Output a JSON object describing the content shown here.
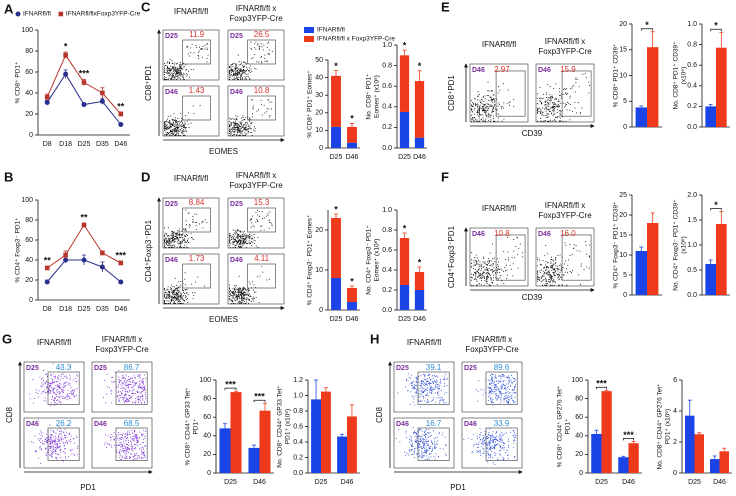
{
  "chart_data": [
    {
      "type": "line",
      "panel": "A",
      "categories": [
        "D8",
        "D18",
        "D25",
        "D35",
        "D46"
      ],
      "ylabel": "% CD8⁺ PD1⁺",
      "ylim": [
        0,
        100
      ],
      "yticks": [
        0,
        20,
        40,
        60,
        80,
        100
      ],
      "legend": "top",
      "series": [
        {
          "name": "IFNARfl/fl",
          "color": "#2b2f8f",
          "marker": "circle",
          "values": [
            31,
            58,
            29,
            32,
            10
          ],
          "errors": [
            2,
            4,
            1,
            3,
            1
          ]
        },
        {
          "name": "IFNARfl/flxFoxp3YFP-Cre",
          "color": "#b8352c",
          "marker": "square",
          "values": [
            36,
            76,
            50,
            40,
            20
          ],
          "errors": [
            3,
            3,
            3,
            5,
            2
          ]
        }
      ],
      "significance": [
        null,
        "*",
        "***",
        null,
        "**"
      ]
    },
    {
      "type": "line",
      "panel": "B",
      "categories": [
        "D8",
        "D18",
        "D25",
        "D35",
        "D46"
      ],
      "ylabel": "% CD4⁺ Foxp3⁻ PD1⁺",
      "ylim": [
        0,
        100
      ],
      "yticks": [
        0,
        20,
        40,
        60,
        80,
        100
      ],
      "series": [
        {
          "color": "#2b2f8f",
          "marker": "circle",
          "values": [
            18,
            40,
            40,
            33,
            18
          ],
          "errors": [
            2,
            3,
            5,
            5,
            1
          ]
        },
        {
          "color": "#b8352c",
          "marker": "square",
          "values": [
            32,
            45,
            75,
            47,
            37
          ],
          "errors": [
            2,
            4,
            2,
            2,
            2
          ]
        }
      ],
      "significance": [
        "**",
        null,
        "**",
        null,
        "***"
      ]
    },
    {
      "type": "flow",
      "panel": "C",
      "color": "#111111",
      "gate_color": "#555555",
      "percent_color": "#d6342a",
      "day_color": "#7a2d9c",
      "ylabel": "CD8⁺PD1",
      "xlabel": "EOMES",
      "columns": [
        {
          "title": [
            "IFNARfl/fl"
          ],
          "plots": [
            {
              "day": "D25",
              "percent": 11.9
            },
            {
              "day": "D46",
              "percent": 1.43
            }
          ]
        },
        {
          "title": [
            "IFNARfl/fl x",
            "Foxp3YFP-Cre"
          ],
          "plots": [
            {
              "day": "D25",
              "percent": 26.5
            },
            {
              "day": "D46",
              "percent": 10.8
            }
          ]
        }
      ]
    },
    {
      "type": "stacked_bar",
      "categories": [
        "D25",
        "D46"
      ],
      "ylabel": "% CD8⁺ PD1⁺ Eomes⁺",
      "ylim": [
        0,
        50
      ],
      "yticks": [
        0,
        10,
        20,
        30,
        40,
        50
      ],
      "legend": "top",
      "series": [
        {
          "name": "IFNARfl/fl",
          "color": "#1a44e6",
          "values": [
            12,
            3
          ],
          "errors": [
            2,
            1
          ]
        },
        {
          "name": "IFNARfl/fl x Foxp3YFP-Cre",
          "color": "#ee3a1a",
          "values": [
            29,
            9
          ],
          "errors": [
            3,
            2
          ]
        }
      ],
      "significance": [
        "*",
        "*"
      ]
    },
    {
      "type": "stacked_bar",
      "categories": [
        "D25",
        "D46"
      ],
      "ylabel": [
        "No. CD8⁺ PD1⁺",
        "Eomes⁺ (x10⁶)"
      ],
      "ylim": [
        0,
        1
      ],
      "yticks": [
        {
          "value": 0,
          "label": "0.0"
        },
        {
          "value": 0.2,
          "label": "0.2"
        },
        {
          "value": 0.4,
          "label": "0.4"
        },
        {
          "value": 0.6,
          "label": "0.6"
        },
        {
          "value": 0.8,
          "label": "0.8"
        },
        {
          "value": 1,
          "label": "1.0"
        }
      ],
      "series": [
        {
          "color": "#1a44e6",
          "values": [
            0.35,
            0.1
          ],
          "errors": [
            0.05,
            0.02
          ]
        },
        {
          "color": "#ee3a1a",
          "values": [
            0.55,
            0.55
          ],
          "errors": [
            0.05,
            0.1
          ]
        }
      ],
      "significance": [
        "*",
        "*"
      ]
    },
    {
      "type": "flow",
      "panel": "D",
      "color": "#111111",
      "gate_color": "#555555",
      "percent_color": "#d6342a",
      "day_color": "#7a2d9c",
      "ylabel": "CD4⁺Foxp3⁻PD1",
      "xlabel": "EOMES",
      "columns": [
        {
          "title": [
            "IFNARfl/fl"
          ],
          "plots": [
            {
              "day": "D25",
              "percent": 8.84
            },
            {
              "day": "D46",
              "percent": 1.73
            }
          ]
        },
        {
          "title": [
            "IFNARfl/fl x",
            "Foxp3YFP-Cre"
          ],
          "plots": [
            {
              "day": "D25",
              "percent": 15.3
            },
            {
              "day": "D46",
              "percent": 4.11
            }
          ]
        }
      ]
    },
    {
      "type": "stacked_bar",
      "categories": [
        "D25",
        "D46"
      ],
      "ylabel": "% CD4⁺ Foxp3⁻ PD1⁺ Eomes⁺",
      "ylim": [
        0,
        25
      ],
      "yticks": [
        0,
        10,
        20
      ],
      "series": [
        {
          "color": "#1a44e6",
          "values": [
            8,
            2
          ],
          "errors": [
            1,
            0.3
          ]
        },
        {
          "color": "#ee3a1a",
          "values": [
            15,
            3.5
          ],
          "errors": [
            1,
            0.5
          ]
        }
      ],
      "significance": [
        "*",
        "*"
      ]
    },
    {
      "type": "stacked_bar",
      "categories": [
        "D25",
        "D46"
      ],
      "ylabel": [
        "No. CD4⁺ Foxp3⁻ PD1⁺",
        "Eomes⁺ (x10⁶)"
      ],
      "ylim": [
        0,
        1
      ],
      "yticks": [
        {
          "value": 0,
          "label": "0.0"
        },
        {
          "value": 0.2,
          "label": "0.2"
        },
        {
          "value": 0.4,
          "label": "0.4"
        },
        {
          "value": 0.6,
          "label": "0.6"
        },
        {
          "value": 0.8,
          "label": "0.8"
        },
        {
          "value": 1,
          "label": "1.0"
        }
      ],
      "series": [
        {
          "color": "#1a44e6",
          "values": [
            0.25,
            0.2
          ],
          "errors": [
            0.05,
            0.05
          ]
        },
        {
          "color": "#ee3a1a",
          "values": [
            0.47,
            0.18
          ],
          "errors": [
            0.05,
            0.05
          ]
        }
      ],
      "significance": [
        "*",
        "*"
      ]
    },
    {
      "type": "flow",
      "panel": "E",
      "color": "#111111",
      "gate_color": "#555555",
      "percent_color": "#d6342a",
      "day_color": "#7a2d9c",
      "ylabel": "CD8⁺PD1",
      "xlabel": "CD39",
      "columns": [
        {
          "title": [
            "IFNARfl/fl"
          ],
          "plots": [
            {
              "day": "D46",
              "percent": 2.97
            }
          ]
        },
        {
          "title": [
            "IFNARfl/fl x",
            "Foxp3YFP-Cre"
          ],
          "plots": [
            {
              "day": "D46",
              "percent": 15.9
            }
          ]
        }
      ]
    },
    {
      "type": "bar",
      "categories": [
        null
      ],
      "ylabel": "% CD8⁺ PD1⁺ CD39⁺",
      "ylim": [
        0,
        20
      ],
      "yticks": [
        0,
        5,
        10,
        15,
        20
      ],
      "bracket": true,
      "series": [
        {
          "color": "#1a44e6",
          "values": [
            3.8
          ],
          "errors": [
            0.3
          ]
        },
        {
          "color": "#ee3a1a",
          "values": [
            15.5
          ],
          "errors": [
            3
          ]
        }
      ],
      "significance": [
        "*"
      ]
    },
    {
      "type": "bar",
      "categories": [
        null
      ],
      "ylabel": [
        "No. CD8⁺ PD1⁺ CD39⁺",
        "(x10⁶)"
      ],
      "ylim": [
        0,
        1
      ],
      "bracket": true,
      "yticks": [
        {
          "value": 0,
          "label": "0.0"
        },
        {
          "value": 0.2,
          "label": "0.2"
        },
        {
          "value": 0.4,
          "label": "0.4"
        },
        {
          "value": 0.6,
          "label": "0.6"
        },
        {
          "value": 0.8,
          "label": "0.8"
        },
        {
          "value": 1,
          "label": "1.0"
        }
      ],
      "series": [
        {
          "color": "#1a44e6",
          "values": [
            0.2
          ],
          "errors": [
            0.02
          ]
        },
        {
          "color": "#ee3a1a",
          "values": [
            0.77
          ],
          "errors": [
            0.15
          ]
        }
      ],
      "significance": [
        "*"
      ]
    },
    {
      "type": "flow",
      "panel": "F",
      "color": "#111111",
      "gate_color": "#555555",
      "percent_color": "#d6342a",
      "day_color": "#7a2d9c",
      "ylabel": "CD4⁺Foxp3⁻PD1",
      "xlabel": "CD39",
      "columns": [
        {
          "title": [
            "IFNARfl/fl"
          ],
          "plots": [
            {
              "day": "D46",
              "percent": 10.8
            }
          ]
        },
        {
          "title": [
            "IFNARfl/fl x",
            "Foxp3YFP-Cre"
          ],
          "plots": [
            {
              "day": "D46",
              "percent": {
                "value": 16,
                "label": "16.0"
              }
            }
          ]
        }
      ]
    },
    {
      "type": "bar",
      "categories": [
        null
      ],
      "ylabel": "% CD4⁺ Foxp3⁻ PD1⁺ CD39⁺",
      "ylim": [
        0,
        25
      ],
      "yticks": [
        0,
        5,
        10,
        15,
        20,
        25
      ],
      "series": [
        {
          "color": "#1a44e6",
          "values": [
            11
          ],
          "errors": [
            1
          ]
        },
        {
          "color": "#ee3a1a",
          "values": [
            18
          ],
          "errors": [
            2.5
          ]
        }
      ]
    },
    {
      "type": "bar",
      "categories": [
        null
      ],
      "ylabel": [
        "No. CD4⁺ Foxp3⁻ PD1⁺ CD39⁺",
        "(x10⁶)"
      ],
      "ylim": [
        0,
        2
      ],
      "bracket": true,
      "yticks": [
        {
          "value": 0,
          "label": "0.0"
        },
        {
          "value": 0.5,
          "label": "0.5"
        },
        {
          "value": 1,
          "label": "1.0"
        },
        {
          "value": 1.5,
          "label": "1.5"
        },
        {
          "value": 2,
          "label": "2.0"
        }
      ],
      "series": [
        {
          "color": "#1a44e6",
          "values": [
            0.62
          ],
          "errors": [
            0.08
          ]
        },
        {
          "color": "#ee3a1a",
          "values": [
            1.42
          ],
          "errors": [
            0.25
          ]
        }
      ],
      "significance": [
        "*"
      ]
    },
    {
      "type": "flow",
      "panel": "G",
      "color": "#7b2fd6",
      "gate_color": "#555555",
      "percent_color": "#2a8fd6",
      "day_color": "#7a2d9c",
      "ylabel": "CD8",
      "xlabel": "PD1",
      "columns": [
        {
          "title": [
            "IFNARfl/fl"
          ],
          "plots": [
            {
              "day": "D25",
              "percent": 43.3
            },
            {
              "day": "D46",
              "percent": 26.2
            }
          ]
        },
        {
          "title": [
            "IFNARfl/fl x",
            "Foxp3YFP-Cre"
          ],
          "plots": [
            {
              "day": "D25",
              "percent": 86.7
            },
            {
              "day": "D46",
              "percent": 68.5
            }
          ]
        }
      ]
    },
    {
      "type": "bar",
      "categories": [
        "D25",
        "D46"
      ],
      "ylabel": [
        "% CD8⁺ CD44⁺ GP33 Tet⁺",
        "PD1⁺"
      ],
      "ylim": [
        0,
        100
      ],
      "yticks": [
        0,
        20,
        40,
        60,
        80,
        100
      ],
      "bracket": true,
      "series": [
        {
          "color": "#1a44e6",
          "values": [
            48,
            27
          ],
          "errors": [
            5,
            3
          ]
        },
        {
          "color": "#ee3a1a",
          "values": [
            87,
            67
          ],
          "errors": [
            1,
            8
          ]
        }
      ],
      "significance": [
        "***",
        "***"
      ]
    },
    {
      "type": "bar",
      "categories": [
        "D25",
        "D46"
      ],
      "ylabel": [
        "No. CD8⁺ CD44⁺ GP33 Tet⁺",
        "PD1⁺ (x10⁶)"
      ],
      "ylim": [
        0,
        1.2
      ],
      "yticks": [
        {
          "value": 0,
          "label": "0.0"
        },
        {
          "value": 0.2,
          "label": "0.2"
        },
        {
          "value": 0.4,
          "label": "0.4"
        },
        {
          "value": 0.6,
          "label": "0.6"
        },
        {
          "value": 0.8,
          "label": "0.8"
        },
        {
          "value": 1,
          "label": "1.0"
        },
        {
          "value": 1.2,
          "label": "1.2"
        }
      ],
      "series": [
        {
          "color": "#1a44e6",
          "values": [
            0.95,
            0.47
          ],
          "errors": [
            0.25,
            0.03
          ]
        },
        {
          "color": "#ee3a1a",
          "values": [
            1.05,
            0.73
          ],
          "errors": [
            0.05,
            0.15
          ]
        }
      ]
    },
    {
      "type": "flow",
      "panel": "H",
      "color": "#2f4fd6",
      "gate_color": "#555555",
      "percent_color": "#2a8fd6",
      "day_color": "#7a2d9c",
      "ylabel": "CD8",
      "xlabel": "PD1",
      "columns": [
        {
          "title": [
            "IFNARfl/fl"
          ],
          "plots": [
            {
              "day": "D25",
              "percent": 39.1
            },
            {
              "day": "D46",
              "percent": 16.7
            }
          ]
        },
        {
          "title": [
            "IFNARfl/fl x",
            "Foxp3YFP-Cre"
          ],
          "plots": [
            {
              "day": "D25",
              "percent": 89.6
            },
            {
              "day": "D46",
              "percent": 33.9
            }
          ]
        }
      ]
    },
    {
      "type": "bar",
      "categories": [
        "D25",
        "D46"
      ],
      "ylabel": [
        "% CD8⁺ CD44⁺ GP276 Tet⁺",
        "PD1⁺"
      ],
      "ylim": [
        0,
        100
      ],
      "yticks": [
        0,
        20,
        40,
        60,
        80,
        100
      ],
      "bracket": true,
      "series": [
        {
          "color": "#1a44e6",
          "values": [
            42,
            17
          ],
          "errors": [
            4,
            1
          ]
        },
        {
          "color": "#ee3a1a",
          "values": [
            88,
            32
          ],
          "errors": [
            1,
            2
          ]
        }
      ],
      "significance": [
        "***",
        "***"
      ]
    },
    {
      "type": "bar",
      "categories": [
        "D25",
        "D46"
      ],
      "ylabel": [
        "No. CD8⁺ CD44⁺ GP276 Tet⁺",
        "PD1⁺ (x10⁶)"
      ],
      "ylim": [
        0,
        6
      ],
      "yticks": [
        0,
        2,
        4,
        6
      ],
      "series": [
        {
          "color": "#1a44e6",
          "values": [
            3.7,
            0.9
          ],
          "errors": [
            1,
            0.2
          ]
        },
        {
          "color": "#ee3a1a",
          "values": [
            2.5,
            1.4
          ],
          "errors": [
            0.1,
            0.2
          ]
        }
      ]
    }
  ]
}
